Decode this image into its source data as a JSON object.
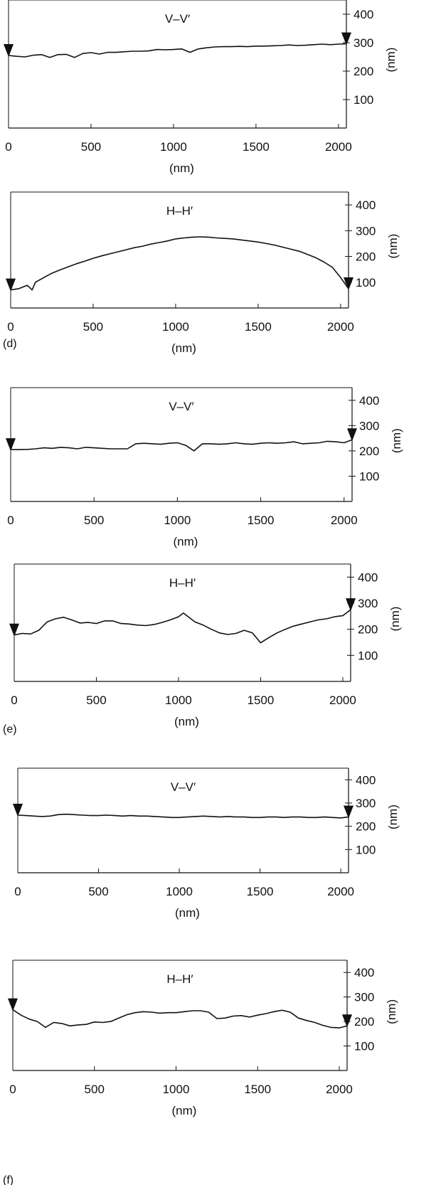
{
  "chart_data": [
    {
      "type": "line",
      "title": "V–V′",
      "xlabel": "(nm)",
      "ylabel": "(nm)",
      "panel_label": "",
      "xlim": [
        0,
        2048
      ],
      "ylim": [
        0,
        450
      ],
      "xticks": [
        0,
        500,
        1000,
        1500,
        2000
      ],
      "yticks": [
        100,
        200,
        300,
        400
      ],
      "grid": false,
      "markers": [
        0,
        2048
      ],
      "x": [
        0,
        50,
        100,
        150,
        200,
        250,
        300,
        350,
        400,
        450,
        500,
        550,
        600,
        650,
        700,
        750,
        800,
        850,
        900,
        950,
        1000,
        1050,
        1100,
        1150,
        1200,
        1250,
        1300,
        1350,
        1400,
        1450,
        1500,
        1550,
        1600,
        1650,
        1700,
        1750,
        1800,
        1850,
        1900,
        1950,
        2000,
        2048
      ],
      "y": [
        255,
        252,
        250,
        256,
        258,
        248,
        258,
        259,
        248,
        262,
        265,
        260,
        266,
        266,
        268,
        270,
        270,
        271,
        276,
        275,
        276,
        278,
        266,
        278,
        282,
        285,
        286,
        286,
        287,
        286,
        288,
        288,
        289,
        290,
        292,
        290,
        291,
        293,
        295,
        293,
        295,
        296
      ]
    },
    {
      "type": "line",
      "title": "H–H′",
      "xlabel": "(nm)",
      "ylabel": "(nm)",
      "panel_label": "(d)",
      "xlim": [
        0,
        2048
      ],
      "ylim": [
        0,
        450
      ],
      "xticks": [
        0,
        500,
        1000,
        1500,
        2000
      ],
      "yticks": [
        100,
        200,
        300,
        400
      ],
      "grid": false,
      "markers": [
        0,
        2048
      ],
      "x": [
        0,
        50,
        100,
        130,
        150,
        200,
        250,
        300,
        350,
        400,
        450,
        500,
        550,
        600,
        650,
        700,
        750,
        800,
        850,
        900,
        950,
        1000,
        1050,
        1100,
        1150,
        1200,
        1250,
        1300,
        1350,
        1400,
        1450,
        1500,
        1550,
        1600,
        1650,
        1700,
        1750,
        1800,
        1850,
        1900,
        1950,
        2000,
        2048
      ],
      "y": [
        70,
        75,
        88,
        70,
        100,
        118,
        135,
        148,
        160,
        172,
        182,
        193,
        202,
        210,
        218,
        226,
        234,
        240,
        248,
        254,
        260,
        268,
        272,
        275,
        276,
        275,
        272,
        270,
        268,
        264,
        260,
        256,
        250,
        244,
        236,
        228,
        220,
        208,
        195,
        178,
        158,
        118,
        75
      ]
    },
    {
      "type": "line",
      "title": "V–V′",
      "xlabel": "(nm)",
      "ylabel": "(nm)",
      "panel_label": "",
      "xlim": [
        0,
        2048
      ],
      "ylim": [
        0,
        450
      ],
      "xticks": [
        0,
        500,
        1000,
        1500,
        2000
      ],
      "yticks": [
        100,
        200,
        300,
        400
      ],
      "grid": false,
      "markers": [
        0,
        2048
      ],
      "x": [
        0,
        50,
        100,
        150,
        200,
        250,
        300,
        350,
        400,
        450,
        500,
        550,
        600,
        650,
        700,
        750,
        800,
        850,
        900,
        950,
        1000,
        1050,
        1100,
        1150,
        1200,
        1250,
        1300,
        1350,
        1400,
        1450,
        1500,
        1550,
        1600,
        1650,
        1700,
        1750,
        1800,
        1850,
        1900,
        1950,
        2000,
        2048
      ],
      "y": [
        205,
        205,
        206,
        208,
        212,
        210,
        214,
        212,
        208,
        214,
        212,
        210,
        208,
        208,
        208,
        228,
        230,
        228,
        226,
        230,
        232,
        222,
        200,
        228,
        228,
        226,
        228,
        232,
        228,
        226,
        230,
        232,
        230,
        232,
        236,
        228,
        230,
        232,
        238,
        236,
        232,
        244
      ]
    },
    {
      "type": "line",
      "title": "H–H′",
      "xlabel": "(nm)",
      "ylabel": "(nm)",
      "panel_label": "(e)",
      "xlim": [
        0,
        2048
      ],
      "ylim": [
        0,
        450
      ],
      "xticks": [
        0,
        500,
        1000,
        1500,
        2000
      ],
      "yticks": [
        100,
        200,
        300,
        400
      ],
      "grid": false,
      "markers": [
        0,
        2048
      ],
      "x": [
        0,
        50,
        100,
        150,
        200,
        250,
        300,
        350,
        400,
        450,
        500,
        550,
        600,
        650,
        700,
        750,
        800,
        850,
        900,
        950,
        1000,
        1030,
        1100,
        1150,
        1200,
        1250,
        1300,
        1350,
        1400,
        1450,
        1500,
        1550,
        1600,
        1650,
        1700,
        1750,
        1800,
        1850,
        1900,
        1950,
        2000,
        2048
      ],
      "y": [
        178,
        184,
        182,
        196,
        228,
        240,
        246,
        236,
        224,
        226,
        222,
        232,
        232,
        222,
        220,
        216,
        214,
        218,
        226,
        236,
        248,
        262,
        228,
        216,
        200,
        186,
        180,
        184,
        196,
        186,
        148,
        168,
        186,
        200,
        212,
        220,
        228,
        236,
        240,
        248,
        252,
        275
      ]
    },
    {
      "type": "line",
      "title": "V–V′",
      "xlabel": "(nm)",
      "ylabel": "(nm)",
      "panel_label": "",
      "xlim": [
        0,
        2048
      ],
      "ylim": [
        0,
        450
      ],
      "xticks": [
        0,
        500,
        1000,
        1500,
        2000
      ],
      "yticks": [
        100,
        200,
        300,
        400
      ],
      "grid": false,
      "markers": [
        0,
        2048
      ],
      "x": [
        0,
        50,
        100,
        150,
        200,
        250,
        300,
        350,
        400,
        450,
        500,
        550,
        600,
        650,
        700,
        750,
        800,
        850,
        900,
        950,
        1000,
        1050,
        1100,
        1150,
        1200,
        1250,
        1300,
        1350,
        1400,
        1450,
        1500,
        1550,
        1600,
        1650,
        1700,
        1750,
        1800,
        1850,
        1900,
        1950,
        2000,
        2048
      ],
      "y": [
        248,
        246,
        244,
        242,
        244,
        250,
        252,
        250,
        248,
        246,
        246,
        248,
        246,
        244,
        246,
        244,
        244,
        242,
        240,
        238,
        238,
        240,
        242,
        244,
        242,
        240,
        242,
        240,
        240,
        238,
        238,
        240,
        240,
        238,
        240,
        240,
        238,
        238,
        240,
        238,
        236,
        240
      ]
    },
    {
      "type": "line",
      "title": "H–H′",
      "xlabel": "(nm)",
      "ylabel": "(nm)",
      "panel_label": "(f)",
      "xlim": [
        0,
        2048
      ],
      "ylim": [
        0,
        450
      ],
      "xticks": [
        0,
        500,
        1000,
        1500,
        2000
      ],
      "yticks": [
        100,
        200,
        300,
        400
      ],
      "grid": false,
      "markers": [
        0,
        2048
      ],
      "x": [
        0,
        50,
        100,
        150,
        200,
        250,
        300,
        350,
        400,
        450,
        500,
        550,
        600,
        650,
        700,
        750,
        800,
        850,
        900,
        950,
        1000,
        1050,
        1100,
        1150,
        1200,
        1250,
        1300,
        1350,
        1400,
        1450,
        1500,
        1550,
        1600,
        1650,
        1700,
        1750,
        1800,
        1850,
        1900,
        1950,
        2000,
        2048
      ],
      "y": [
        248,
        226,
        210,
        200,
        176,
        196,
        192,
        182,
        186,
        188,
        198,
        196,
        200,
        214,
        228,
        236,
        240,
        238,
        234,
        236,
        236,
        240,
        244,
        244,
        238,
        212,
        214,
        222,
        224,
        218,
        226,
        232,
        240,
        246,
        238,
        214,
        204,
        196,
        184,
        176,
        174,
        182
      ]
    }
  ]
}
